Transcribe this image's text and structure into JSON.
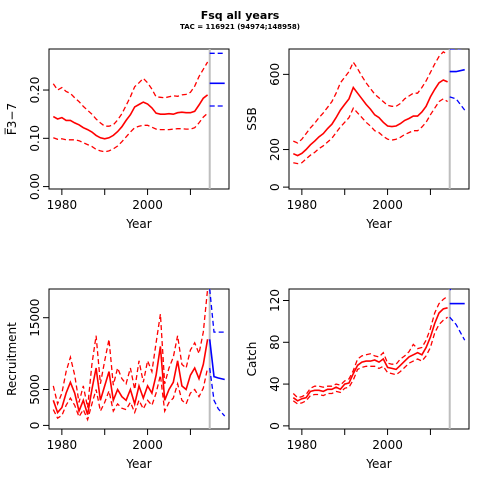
{
  "header": {
    "title": "Fsq all years",
    "subtitle": "TAC = 116921 (94974;148958)"
  },
  "colors": {
    "estimate": "#ff0000",
    "forecast": "#0000ff",
    "divider": "#bebebe",
    "axes": "#000000"
  },
  "chart_data": [
    {
      "id": "fbar",
      "type": "line",
      "ylabel": "F̅3−7",
      "xlabel": "Year",
      "xlim": [
        1977,
        2019
      ],
      "ylim": [
        -0.005,
        0.285
      ],
      "x_ticks": [
        1980,
        2000
      ],
      "y_ticks": [
        0.0,
        0.1,
        0.2
      ],
      "y_tick_labels": [
        "0.00",
        "0.10",
        "0.20"
      ],
      "divider_x": 2014.5,
      "estimate_x": [
        1978,
        1979,
        1980,
        1981,
        1982,
        1983,
        1984,
        1985,
        1986,
        1987,
        1988,
        1989,
        1990,
        1991,
        1992,
        1993,
        1994,
        1995,
        1996,
        1997,
        1998,
        1999,
        2000,
        2001,
        2002,
        2003,
        2004,
        2005,
        2006,
        2007,
        2008,
        2009,
        2010,
        2011,
        2012,
        2013,
        2014
      ],
      "estimate": [
        0.145,
        0.14,
        0.143,
        0.137,
        0.137,
        0.132,
        0.128,
        0.122,
        0.118,
        0.113,
        0.106,
        0.101,
        0.099,
        0.101,
        0.106,
        0.114,
        0.124,
        0.137,
        0.149,
        0.165,
        0.17,
        0.175,
        0.171,
        0.163,
        0.152,
        0.15,
        0.15,
        0.151,
        0.15,
        0.153,
        0.154,
        0.153,
        0.153,
        0.156,
        0.169,
        0.183,
        0.19
      ],
      "upper": [
        0.213,
        0.2,
        0.205,
        0.197,
        0.193,
        0.184,
        0.176,
        0.166,
        0.158,
        0.15,
        0.14,
        0.132,
        0.125,
        0.125,
        0.128,
        0.138,
        0.151,
        0.168,
        0.186,
        0.207,
        0.215,
        0.224,
        0.215,
        0.202,
        0.186,
        0.185,
        0.184,
        0.186,
        0.188,
        0.187,
        0.19,
        0.191,
        0.195,
        0.208,
        0.228,
        0.243,
        0.258
      ],
      "lower": [
        0.101,
        0.098,
        0.099,
        0.097,
        0.097,
        0.097,
        0.095,
        0.091,
        0.087,
        0.083,
        0.077,
        0.074,
        0.072,
        0.074,
        0.078,
        0.084,
        0.093,
        0.103,
        0.113,
        0.122,
        0.125,
        0.127,
        0.127,
        0.123,
        0.119,
        0.118,
        0.118,
        0.118,
        0.119,
        0.12,
        0.12,
        0.119,
        0.119,
        0.122,
        0.132,
        0.144,
        0.152
      ],
      "forecast_x": [
        2014.5,
        2018
      ],
      "forecast": [
        0.214,
        0.214
      ],
      "forecast_upper": [
        0.276,
        0.276
      ],
      "forecast_lower": [
        0.167,
        0.167
      ]
    },
    {
      "id": "ssb",
      "type": "line",
      "ylabel": "SSB",
      "xlabel": "Year",
      "xlim": [
        1977,
        2019
      ],
      "ylim": [
        -10,
        735
      ],
      "x_ticks": [
        1980,
        2000
      ],
      "y_ticks": [
        0,
        200,
        600
      ],
      "y_tick_labels": [
        "0",
        "200",
        "600"
      ],
      "divider_x": 2014.5,
      "estimate_x": [
        1978,
        1979,
        1980,
        1981,
        1982,
        1983,
        1984,
        1985,
        1986,
        1987,
        1988,
        1989,
        1990,
        1991,
        1992,
        1993,
        1994,
        1995,
        1996,
        1997,
        1998,
        1999,
        2000,
        2001,
        2002,
        2003,
        2004,
        2005,
        2006,
        2007,
        2008,
        2009,
        2010,
        2011,
        2012,
        2013,
        2014
      ],
      "estimate": [
        178,
        168,
        180,
        200,
        225,
        245,
        268,
        285,
        312,
        335,
        370,
        410,
        440,
        470,
        530,
        500,
        470,
        440,
        415,
        385,
        370,
        345,
        325,
        322,
        325,
        338,
        355,
        365,
        378,
        378,
        400,
        430,
        480,
        520,
        555,
        570,
        560
      ],
      "upper": [
        245,
        235,
        255,
        285,
        315,
        340,
        370,
        395,
        425,
        455,
        500,
        555,
        585,
        615,
        665,
        630,
        590,
        555,
        525,
        495,
        475,
        455,
        435,
        430,
        430,
        445,
        470,
        485,
        500,
        500,
        530,
        565,
        610,
        655,
        695,
        720,
        705
      ],
      "lower": [
        130,
        125,
        130,
        150,
        170,
        185,
        205,
        220,
        240,
        260,
        290,
        320,
        345,
        370,
        420,
        395,
        370,
        345,
        325,
        300,
        290,
        270,
        255,
        250,
        255,
        265,
        280,
        290,
        300,
        300,
        320,
        345,
        385,
        420,
        455,
        470,
        455
      ],
      "forecast_x": [
        2014.5,
        2016,
        2018
      ],
      "forecast": [
        615,
        615,
        625
      ],
      "forecast_upper": [
        735,
        735,
        740
      ],
      "forecast_lower": [
        480,
        470,
        410
      ]
    },
    {
      "id": "recruitment",
      "type": "line",
      "ylabel": "Recruitment",
      "xlabel": "Year",
      "xlim": [
        1977,
        2019
      ],
      "ylim": [
        -500,
        19000
      ],
      "x_ticks": [
        1980,
        2000
      ],
      "y_ticks": [
        0,
        5000,
        15000
      ],
      "y_tick_labels": [
        "0",
        "5000",
        "15000"
      ],
      "divider_x": 2014.5,
      "estimate_x": [
        1978,
        1979,
        1980,
        1981,
        1982,
        1983,
        1984,
        1985,
        1986,
        1987,
        1988,
        1989,
        1990,
        1991,
        1992,
        1993,
        1994,
        1995,
        1996,
        1997,
        1998,
        1999,
        2000,
        2001,
        2002,
        2003,
        2004,
        2005,
        2006,
        2007,
        2008,
        2009,
        2010,
        2011,
        2012,
        2013,
        2014
      ],
      "estimate": [
        3500,
        1800,
        2500,
        4500,
        6000,
        4500,
        2000,
        3500,
        1500,
        5000,
        8000,
        3500,
        5500,
        7500,
        3500,
        5000,
        4000,
        3500,
        5000,
        3000,
        5500,
        3800,
        5500,
        4500,
        7000,
        11000,
        3500,
        5000,
        6000,
        9000,
        5500,
        5000,
        7000,
        8000,
        6500,
        8500,
        12000
      ],
      "upper": [
        5500,
        3000,
        4500,
        7500,
        9500,
        7000,
        3200,
        5500,
        2500,
        8500,
        12500,
        5800,
        9000,
        12000,
        5600,
        8000,
        6500,
        5800,
        8000,
        5000,
        9000,
        6000,
        9000,
        7500,
        11500,
        15500,
        5800,
        8000,
        9500,
        12500,
        8500,
        8000,
        10500,
        11500,
        10000,
        13000,
        19000
      ],
      "lower": [
        2200,
        1000,
        1400,
        2800,
        3800,
        2800,
        1200,
        2200,
        800,
        3000,
        5000,
        2000,
        3200,
        4800,
        2000,
        3000,
        2400,
        2200,
        3200,
        1800,
        3500,
        2300,
        3500,
        2800,
        4500,
        7000,
        2000,
        3200,
        3800,
        5800,
        3500,
        3000,
        4500,
        5000,
        4000,
        5200,
        8000
      ],
      "forecast_x": [
        2014.5,
        2015.5,
        2016.5,
        2018
      ],
      "forecast": [
        12000,
        6800,
        6600,
        6400
      ],
      "forecast_upper": [
        19000,
        13000,
        13000,
        13000
      ],
      "forecast_lower": [
        8000,
        3500,
        2300,
        1300
      ]
    },
    {
      "id": "catch",
      "type": "line",
      "ylabel": "Catch",
      "xlabel": "Year",
      "xlim": [
        1977,
        2019
      ],
      "ylim": [
        -3,
        131
      ],
      "x_ticks": [
        1980,
        2000
      ],
      "y_ticks": [
        0,
        40,
        80,
        120
      ],
      "y_tick_labels": [
        "0",
        "40",
        "80",
        "120"
      ],
      "divider_x": 2014.5,
      "estimate_x": [
        1978,
        1979,
        1980,
        1981,
        1982,
        1983,
        1984,
        1985,
        1986,
        1987,
        1988,
        1989,
        1990,
        1991,
        1992,
        1993,
        1994,
        1995,
        1996,
        1997,
        1998,
        1999,
        2000,
        2001,
        2002,
        2003,
        2004,
        2005,
        2006,
        2007,
        2008,
        2009,
        2010,
        2011,
        2012,
        2013,
        2014
      ],
      "estimate": [
        27,
        24,
        26,
        27,
        33,
        34,
        34,
        33,
        35,
        35,
        37,
        35,
        40,
        41,
        50,
        58,
        61,
        62,
        62,
        63,
        61,
        64,
        56,
        55,
        54,
        58,
        62,
        66,
        68,
        70,
        68,
        75,
        85,
        98,
        108,
        112,
        113
      ],
      "upper": [
        31,
        27,
        28,
        30,
        36,
        38,
        38,
        37,
        38,
        38,
        40,
        39,
        43,
        45,
        53,
        64,
        67,
        68,
        69,
        67,
        66,
        70,
        60,
        59,
        59,
        64,
        67,
        71,
        78,
        74,
        75,
        82,
        93,
        108,
        117,
        121,
        124
      ],
      "lower": [
        24,
        21,
        22,
        24,
        29,
        30,
        30,
        29,
        31,
        31,
        33,
        32,
        36,
        37,
        44,
        54,
        56,
        57,
        57,
        57,
        55,
        57,
        51,
        50,
        49,
        52,
        56,
        60,
        62,
        64,
        62,
        67,
        75,
        89,
        97,
        101,
        104
      ],
      "forecast_x": [
        2014.5,
        2016,
        2018
      ],
      "forecast": [
        117,
        117,
        117
      ],
      "forecast_upper": [
        130,
        135,
        135
      ],
      "forecast_lower": [
        104,
        97,
        82
      ]
    }
  ]
}
